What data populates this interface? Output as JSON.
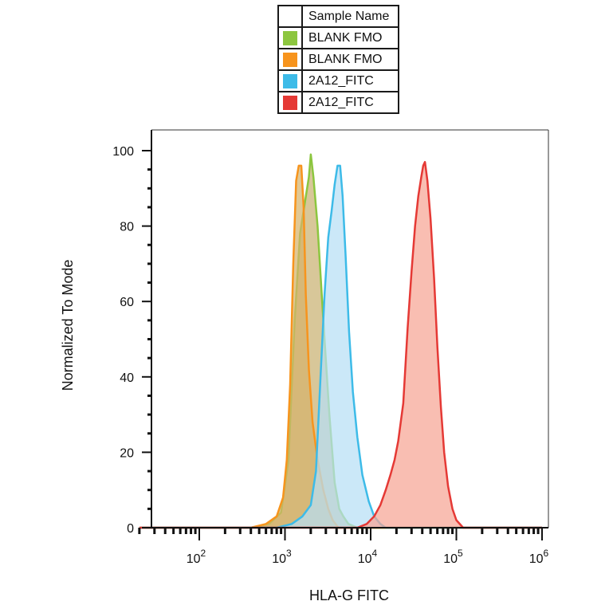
{
  "chart_data": {
    "type": "area",
    "title": "",
    "xlabel": "HLA-G FITC",
    "ylabel": "Normalized To Mode",
    "x_scale": "log",
    "xlim": [
      20,
      1000000
    ],
    "ylim": [
      0,
      100
    ],
    "x_ticks": [
      {
        "value": 100,
        "base": "10",
        "exp": "2"
      },
      {
        "value": 1000,
        "base": "10",
        "exp": "3"
      },
      {
        "value": 10000,
        "base": "10",
        "exp": "4"
      },
      {
        "value": 100000,
        "base": "10",
        "exp": "5"
      },
      {
        "value": 1000000,
        "base": "10",
        "exp": "6"
      }
    ],
    "y_ticks": [
      "0",
      "20",
      "40",
      "60",
      "80",
      "100"
    ],
    "legend": {
      "header": "Sample Name",
      "placement": "top-center",
      "entries": [
        {
          "label": "BLANK FMO",
          "color": "#8cc63f"
        },
        {
          "label": "BLANK FMO",
          "color": "#f7941d"
        },
        {
          "label": "2A12_FITC",
          "color": "#3dbbe8"
        },
        {
          "label": "2A12_FITC",
          "color": "#e53935"
        }
      ]
    },
    "series": [
      {
        "color": "#8cc63f",
        "fill": "#c9b271",
        "points": [
          [
            20,
            0
          ],
          [
            400,
            0
          ],
          [
            650,
            1
          ],
          [
            900,
            4
          ],
          [
            1100,
            18
          ],
          [
            1300,
            55
          ],
          [
            1500,
            78
          ],
          [
            1700,
            86
          ],
          [
            1900,
            93
          ],
          [
            2000,
            99
          ],
          [
            2150,
            93
          ],
          [
            2400,
            80
          ],
          [
            2800,
            55
          ],
          [
            3300,
            30
          ],
          [
            3800,
            12
          ],
          [
            4300,
            5
          ],
          [
            4800,
            3
          ],
          [
            5500,
            1
          ],
          [
            7000,
            0
          ],
          [
            1000000,
            0
          ]
        ]
      },
      {
        "color": "#f7941d",
        "fill": "#d6b36b",
        "points": [
          [
            20,
            0
          ],
          [
            400,
            0
          ],
          [
            600,
            1
          ],
          [
            800,
            3
          ],
          [
            950,
            8
          ],
          [
            1050,
            18
          ],
          [
            1150,
            38
          ],
          [
            1250,
            70
          ],
          [
            1350,
            92
          ],
          [
            1450,
            96
          ],
          [
            1550,
            96
          ],
          [
            1650,
            85
          ],
          [
            1750,
            62
          ],
          [
            1900,
            42
          ],
          [
            2100,
            28
          ],
          [
            2400,
            18
          ],
          [
            2800,
            10
          ],
          [
            3200,
            5
          ],
          [
            3600,
            2
          ],
          [
            4200,
            0
          ],
          [
            1000000,
            0
          ]
        ]
      },
      {
        "color": "#3dbbe8",
        "fill": "#b7dff5",
        "points": [
          [
            20,
            0
          ],
          [
            800,
            0
          ],
          [
            1200,
            1
          ],
          [
            1600,
            3
          ],
          [
            2000,
            6
          ],
          [
            2300,
            15
          ],
          [
            2600,
            40
          ],
          [
            2900,
            62
          ],
          [
            3200,
            77
          ],
          [
            3500,
            84
          ],
          [
            3800,
            91
          ],
          [
            4100,
            96
          ],
          [
            4400,
            96
          ],
          [
            4700,
            88
          ],
          [
            5100,
            72
          ],
          [
            5600,
            52
          ],
          [
            6200,
            36
          ],
          [
            7000,
            24
          ],
          [
            8000,
            14
          ],
          [
            9500,
            7
          ],
          [
            11000,
            3
          ],
          [
            13000,
            1
          ],
          [
            15000,
            0
          ],
          [
            1000000,
            0
          ]
        ]
      },
      {
        "color": "#e53935",
        "fill": "#f6a594",
        "points": [
          [
            20,
            0
          ],
          [
            7000,
            0
          ],
          [
            9000,
            1
          ],
          [
            11000,
            3
          ],
          [
            13000,
            6
          ],
          [
            15000,
            10
          ],
          [
            17000,
            14
          ],
          [
            19000,
            18
          ],
          [
            21000,
            23
          ],
          [
            24000,
            33
          ],
          [
            27000,
            53
          ],
          [
            30000,
            68
          ],
          [
            33000,
            80
          ],
          [
            36000,
            88
          ],
          [
            39000,
            93
          ],
          [
            41000,
            96
          ],
          [
            43000,
            97
          ],
          [
            46000,
            92
          ],
          [
            50000,
            82
          ],
          [
            55000,
            66
          ],
          [
            60000,
            48
          ],
          [
            66000,
            32
          ],
          [
            72000,
            20
          ],
          [
            80000,
            11
          ],
          [
            90000,
            5
          ],
          [
            100000,
            2
          ],
          [
            120000,
            0
          ],
          [
            1000000,
            0
          ]
        ]
      }
    ]
  }
}
